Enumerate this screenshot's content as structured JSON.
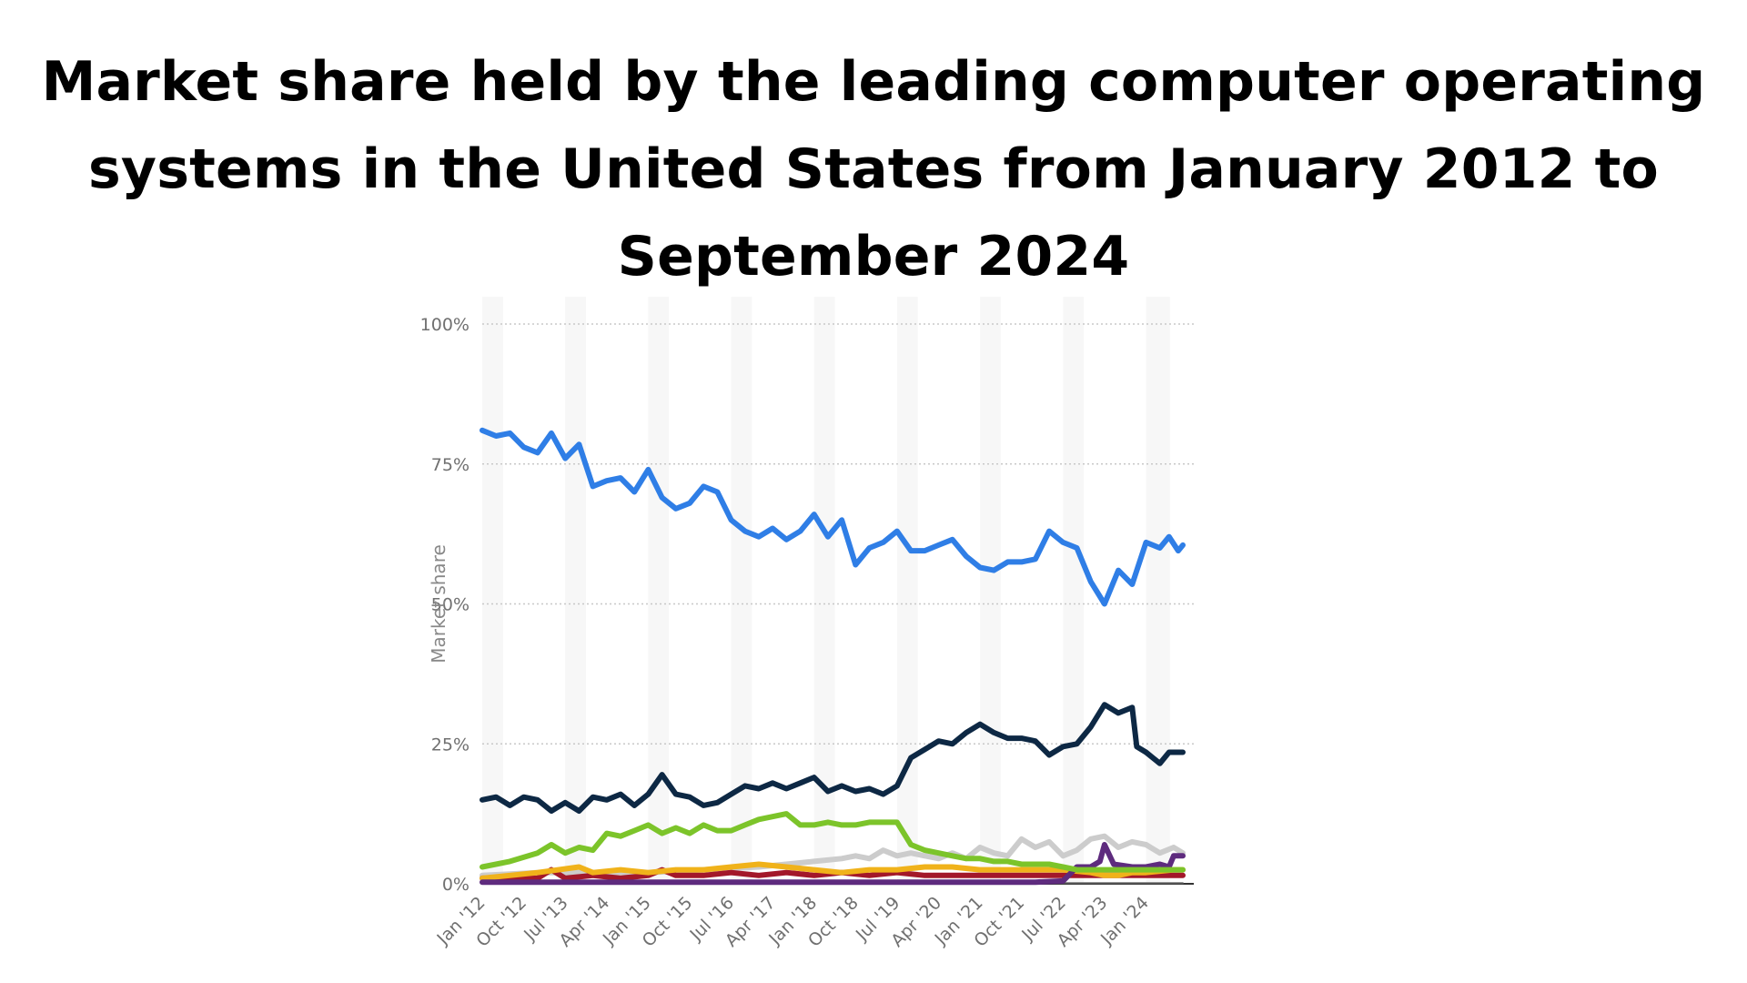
{
  "title": "Market share held by the leading computer operating systems in the United States from January 2012 to September 2024",
  "chart_data": {
    "type": "line",
    "title": "Market share held by the leading computer operating systems in the United States from January 2012 to September 2024",
    "xlabel": "",
    "ylabel": "Market share",
    "x_start": "Jan '12",
    "x_end": "Sep '24",
    "ylim": [
      0,
      100
    ],
    "y_ticks": [
      "0%",
      "25%",
      "50%",
      "75%",
      "100%"
    ],
    "x_ticks": [
      "Jan '12",
      "Oct '12",
      "Jul '13",
      "Apr '14",
      "Jan '15",
      "Oct '15",
      "Jul '16",
      "Apr '17",
      "Jan '18",
      "Oct '18",
      "Jul '19",
      "Apr '20",
      "Jan '21",
      "Oct '21",
      "Jul '22",
      "Apr '23",
      "Jan '24"
    ],
    "grid": true,
    "legend": "none",
    "series": [
      {
        "color": "#2f7ee6",
        "points": [
          [
            "Jan '12",
            81
          ],
          [
            "Apr '12",
            80
          ],
          [
            "Jul '12",
            80.5
          ],
          [
            "Oct '12",
            78
          ],
          [
            "Jan '13",
            77
          ],
          [
            "Apr '13",
            80.5
          ],
          [
            "Jul '13",
            76
          ],
          [
            "Oct '13",
            78.5
          ],
          [
            "Jan '14",
            71
          ],
          [
            "Apr '14",
            72
          ],
          [
            "Jul '14",
            72.5
          ],
          [
            "Oct '14",
            70
          ],
          [
            "Jan '15",
            74
          ],
          [
            "Apr '15",
            69
          ],
          [
            "Jul '15",
            67
          ],
          [
            "Oct '15",
            68
          ],
          [
            "Jan '16",
            71
          ],
          [
            "Apr '16",
            70
          ],
          [
            "Jul '16",
            65
          ],
          [
            "Oct '16",
            63
          ],
          [
            "Jan '17",
            62
          ],
          [
            "Apr '17",
            63.5
          ],
          [
            "Jul '17",
            61.5
          ],
          [
            "Oct '17",
            63
          ],
          [
            "Jan '18",
            66
          ],
          [
            "Apr '18",
            62
          ],
          [
            "Jul '18",
            65
          ],
          [
            "Oct '18",
            57
          ],
          [
            "Jan '19",
            60
          ],
          [
            "Apr '19",
            61
          ],
          [
            "Jul '19",
            63
          ],
          [
            "Oct '19",
            59.5
          ],
          [
            "Jan '20",
            59.5
          ],
          [
            "Apr '20",
            60.5
          ],
          [
            "Jul '20",
            61.5
          ],
          [
            "Oct '20",
            58.5
          ],
          [
            "Jan '21",
            56.5
          ],
          [
            "Apr '21",
            56
          ],
          [
            "Jul '21",
            57.5
          ],
          [
            "Oct '21",
            57.5
          ],
          [
            "Jan '22",
            58
          ],
          [
            "Apr '22",
            63
          ],
          [
            "Jul '22",
            61
          ],
          [
            "Oct '22",
            60
          ],
          [
            "Jan '23",
            54
          ],
          [
            "Apr '23",
            50
          ],
          [
            "Jul '23",
            56
          ],
          [
            "Oct '23",
            53.5
          ],
          [
            "Jan '24",
            61
          ],
          [
            "Apr '24",
            60
          ],
          [
            "Jun '24",
            62
          ],
          [
            "Aug '24",
            59.5
          ],
          [
            "Sep '24",
            60.5
          ]
        ]
      },
      {
        "color": "#0d2844",
        "points": [
          [
            "Jan '12",
            15
          ],
          [
            "Apr '12",
            15.5
          ],
          [
            "Jul '12",
            14
          ],
          [
            "Oct '12",
            15.5
          ],
          [
            "Jan '13",
            15
          ],
          [
            "Apr '13",
            13
          ],
          [
            "Jul '13",
            14.5
          ],
          [
            "Oct '13",
            13
          ],
          [
            "Jan '14",
            15.5
          ],
          [
            "Apr '14",
            15
          ],
          [
            "Jul '14",
            16
          ],
          [
            "Oct '14",
            14
          ],
          [
            "Jan '15",
            16
          ],
          [
            "Apr '15",
            19.5
          ],
          [
            "Jul '15",
            16
          ],
          [
            "Oct '15",
            15.5
          ],
          [
            "Jan '16",
            14
          ],
          [
            "Apr '16",
            14.5
          ],
          [
            "Jul '16",
            16
          ],
          [
            "Oct '16",
            17.5
          ],
          [
            "Jan '17",
            17
          ],
          [
            "Apr '17",
            18
          ],
          [
            "Jul '17",
            17
          ],
          [
            "Oct '17",
            18
          ],
          [
            "Jan '18",
            19
          ],
          [
            "Apr '18",
            16.5
          ],
          [
            "Jul '18",
            17.5
          ],
          [
            "Oct '18",
            16.5
          ],
          [
            "Jan '19",
            17
          ],
          [
            "Apr '19",
            16
          ],
          [
            "Jul '19",
            17.5
          ],
          [
            "Oct '19",
            22.5
          ],
          [
            "Jan '20",
            24
          ],
          [
            "Apr '20",
            25.5
          ],
          [
            "Jul '20",
            25
          ],
          [
            "Oct '20",
            27
          ],
          [
            "Jan '21",
            28.5
          ],
          [
            "Apr '21",
            27
          ],
          [
            "Jul '21",
            26
          ],
          [
            "Oct '21",
            26
          ],
          [
            "Jan '22",
            25.5
          ],
          [
            "Apr '22",
            23
          ],
          [
            "Jul '22",
            24.5
          ],
          [
            "Oct '22",
            25
          ],
          [
            "Jan '23",
            28
          ],
          [
            "Apr '23",
            32
          ],
          [
            "Jul '23",
            30.5
          ],
          [
            "Oct '23",
            31.5
          ],
          [
            "Nov '23",
            24.5
          ],
          [
            "Jan '24",
            23.5
          ],
          [
            "Apr '24",
            21.5
          ],
          [
            "Jun '24",
            23.5
          ],
          [
            "Sep '24",
            23.5
          ]
        ]
      },
      {
        "color": "#7cc42a",
        "points": [
          [
            "Jan '12",
            3
          ],
          [
            "Jul '12",
            4
          ],
          [
            "Jan '13",
            5.5
          ],
          [
            "Apr '13",
            7
          ],
          [
            "Jul '13",
            5.5
          ],
          [
            "Oct '13",
            6.5
          ],
          [
            "Jan '14",
            6
          ],
          [
            "Apr '14",
            9
          ],
          [
            "Jul '14",
            8.5
          ],
          [
            "Oct '14",
            9.5
          ],
          [
            "Jan '15",
            10.5
          ],
          [
            "Apr '15",
            9
          ],
          [
            "Jul '15",
            10
          ],
          [
            "Oct '15",
            9
          ],
          [
            "Jan '16",
            10.5
          ],
          [
            "Apr '16",
            9.5
          ],
          [
            "Jul '16",
            9.5
          ],
          [
            "Oct '16",
            10.5
          ],
          [
            "Jan '17",
            11.5
          ],
          [
            "Apr '17",
            12
          ],
          [
            "Jul '17",
            12.5
          ],
          [
            "Oct '17",
            10.5
          ],
          [
            "Jan '18",
            10.5
          ],
          [
            "Apr '18",
            11
          ],
          [
            "Jul '18",
            10.5
          ],
          [
            "Oct '18",
            10.5
          ],
          [
            "Jan '19",
            11
          ],
          [
            "Apr '19",
            11
          ],
          [
            "Jul '19",
            11
          ],
          [
            "Oct '19",
            7
          ],
          [
            "Jan '20",
            6
          ],
          [
            "Apr '20",
            5.5
          ],
          [
            "Jul '20",
            5
          ],
          [
            "Oct '20",
            4.5
          ],
          [
            "Jan '21",
            4.5
          ],
          [
            "Apr '21",
            4
          ],
          [
            "Jul '21",
            4
          ],
          [
            "Oct '21",
            3.5
          ],
          [
            "Jan '22",
            3.5
          ],
          [
            "Apr '22",
            3.5
          ],
          [
            "Jul '22",
            3
          ],
          [
            "Oct '22",
            2.5
          ],
          [
            "Jan '23",
            2.5
          ],
          [
            "Apr '23",
            2.5
          ],
          [
            "Jul '23",
            2.5
          ],
          [
            "Oct '23",
            2.5
          ],
          [
            "Jan '24",
            2.5
          ],
          [
            "Apr '24",
            2.5
          ],
          [
            "Sep '24",
            2.5
          ]
        ]
      },
      {
        "color": "#cccccc",
        "points": [
          [
            "Jan '12",
            1.5
          ],
          [
            "Jan '13",
            2
          ],
          [
            "Jan '14",
            2
          ],
          [
            "Jan '15",
            2
          ],
          [
            "Jan '16",
            2.5
          ],
          [
            "Jan '17",
            3
          ],
          [
            "Jan '18",
            4
          ],
          [
            "Jul '18",
            4.5
          ],
          [
            "Oct '18",
            5
          ],
          [
            "Jan '19",
            4.5
          ],
          [
            "Apr '19",
            6
          ],
          [
            "Jul '19",
            5
          ],
          [
            "Oct '19",
            5.5
          ],
          [
            "Jan '20",
            5
          ],
          [
            "Apr '20",
            4.5
          ],
          [
            "Jul '20",
            5.5
          ],
          [
            "Oct '20",
            4.5
          ],
          [
            "Jan '21",
            6.5
          ],
          [
            "Apr '21",
            5.5
          ],
          [
            "Jul '21",
            5
          ],
          [
            "Oct '21",
            8
          ],
          [
            "Jan '22",
            6.5
          ],
          [
            "Apr '22",
            7.5
          ],
          [
            "Jul '22",
            5
          ],
          [
            "Oct '22",
            6
          ],
          [
            "Jan '23",
            8
          ],
          [
            "Apr '23",
            8.5
          ],
          [
            "Jul '23",
            6.5
          ],
          [
            "Oct '23",
            7.5
          ],
          [
            "Jan '24",
            7
          ],
          [
            "Apr '24",
            5.5
          ],
          [
            "Jul '24",
            6.5
          ],
          [
            "Sep '24",
            5.5
          ]
        ]
      },
      {
        "color": "#f0b21a",
        "points": [
          [
            "Jan '12",
            1
          ],
          [
            "Jul '12",
            1.5
          ],
          [
            "Jan '13",
            2
          ],
          [
            "Oct '13",
            3
          ],
          [
            "Jan '14",
            2
          ],
          [
            "Jul '14",
            2.5
          ],
          [
            "Jan '15",
            2
          ],
          [
            "Jul '15",
            2.5
          ],
          [
            "Jan '16",
            2.5
          ],
          [
            "Jul '16",
            3
          ],
          [
            "Jan '17",
            3.5
          ],
          [
            "Jul '17",
            3
          ],
          [
            "Jan '18",
            2.5
          ],
          [
            "Jul '18",
            2
          ],
          [
            "Jan '19",
            2.5
          ],
          [
            "Jul '19",
            2.5
          ],
          [
            "Jan '20",
            3
          ],
          [
            "Jul '20",
            3
          ],
          [
            "Jan '21",
            2.5
          ],
          [
            "Jul '21",
            2.5
          ],
          [
            "Jan '22",
            2.5
          ],
          [
            "Jul '22",
            2.5
          ],
          [
            "Jan '23",
            2
          ],
          [
            "Apr '23",
            1.5
          ],
          [
            "Jul '23",
            1.5
          ],
          [
            "Oct '23",
            2
          ],
          [
            "Jan '24",
            2
          ],
          [
            "Jul '24",
            2.5
          ],
          [
            "Sep '24",
            2.5
          ]
        ]
      },
      {
        "color": "#a3182a",
        "points": [
          [
            "Jan '12",
            1
          ],
          [
            "Jan '13",
            1
          ],
          [
            "Apr '13",
            2.5
          ],
          [
            "Jul '13",
            1
          ],
          [
            "Jan '14",
            1.5
          ],
          [
            "Jul '14",
            1
          ],
          [
            "Jan '15",
            1.5
          ],
          [
            "Apr '15",
            2.5
          ],
          [
            "Jul '15",
            1.5
          ],
          [
            "Jan '16",
            1.5
          ],
          [
            "Jul '16",
            2
          ],
          [
            "Jan '17",
            1.5
          ],
          [
            "Jul '17",
            2
          ],
          [
            "Jan '18",
            1.5
          ],
          [
            "Jul '18",
            2
          ],
          [
            "Jan '19",
            1.5
          ],
          [
            "Jul '19",
            2
          ],
          [
            "Jan '20",
            1.5
          ],
          [
            "Jul '20",
            1.5
          ],
          [
            "Jan '21",
            1.5
          ],
          [
            "Jul '21",
            1.5
          ],
          [
            "Jan '22",
            1.5
          ],
          [
            "Jul '22",
            1.5
          ],
          [
            "Jan '23",
            1.5
          ],
          [
            "Jul '23",
            1.5
          ],
          [
            "Jan '24",
            1.5
          ],
          [
            "Jul '24",
            1.5
          ],
          [
            "Sep '24",
            1.5
          ]
        ]
      },
      {
        "color": "#5e2b7e",
        "points": [
          [
            "Jan '12",
            0.3
          ],
          [
            "Jan '14",
            0.3
          ],
          [
            "Jan '16",
            0.3
          ],
          [
            "Jan '18",
            0.3
          ],
          [
            "Jan '20",
            0.3
          ],
          [
            "Jan '22",
            0.3
          ],
          [
            "Jul '22",
            0.5
          ],
          [
            "Oct '22",
            3
          ],
          [
            "Jan '23",
            3
          ],
          [
            "Mar '23",
            4
          ],
          [
            "Apr '23",
            7
          ],
          [
            "Jun '23",
            3.5
          ],
          [
            "Oct '23",
            3
          ],
          [
            "Jan '24",
            3
          ],
          [
            "Apr '24",
            3.5
          ],
          [
            "Jun '24",
            3
          ],
          [
            "Jul '24",
            5
          ],
          [
            "Sep '24",
            5
          ]
        ]
      },
      {
        "color": "#555555",
        "points": [
          [
            "Jan '12",
            0.1
          ],
          [
            "Sep '24",
            0.1
          ]
        ]
      }
    ]
  }
}
